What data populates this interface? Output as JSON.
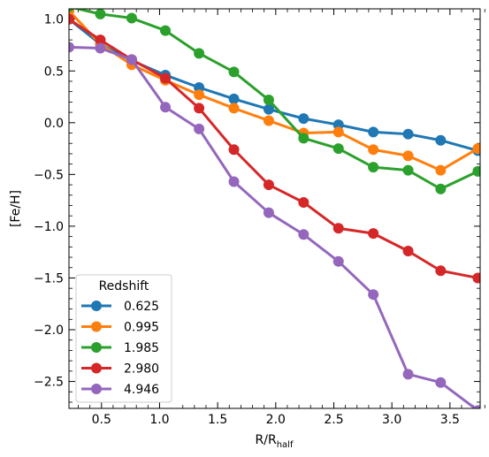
{
  "chart_data": {
    "type": "line",
    "xlabel": "R/R",
    "xlabel_sub": "half",
    "ylabel": "[Fe/H]",
    "xlim": [
      0.22,
      3.76
    ],
    "ylim": [
      -2.76,
      1.1
    ],
    "xticks": [
      0.5,
      1.0,
      1.5,
      2.0,
      2.5,
      3.0,
      3.5
    ],
    "xtick_labels": [
      "0.5",
      "1.0",
      "1.5",
      "2.0",
      "2.5",
      "3.0",
      "3.5"
    ],
    "yticks": [
      1.0,
      0.5,
      0.0,
      -0.5,
      -1.0,
      -1.5,
      -2.0,
      -2.5
    ],
    "ytick_labels": [
      "1.0",
      "0.5",
      "0.0",
      "−0.5",
      "−1.0",
      "−1.5",
      "−2.0",
      "−2.5"
    ],
    "grid": false,
    "legend": {
      "title": "Redshift",
      "position": "lower-left"
    },
    "x": [
      0.22,
      0.49,
      0.76,
      1.05,
      1.34,
      1.64,
      1.94,
      2.24,
      2.54,
      2.84,
      3.14,
      3.42,
      3.74
    ],
    "series": [
      {
        "name": "0.625",
        "color": "#1f77b4",
        "values": [
          1.0,
          0.76,
          0.6,
          0.46,
          0.34,
          0.23,
          0.13,
          0.04,
          -0.02,
          -0.09,
          -0.11,
          -0.17,
          -0.27
        ]
      },
      {
        "name": "0.995",
        "color": "#ff7f0e",
        "values": [
          1.08,
          0.76,
          0.56,
          0.41,
          0.27,
          0.14,
          0.02,
          -0.1,
          -0.09,
          -0.26,
          -0.32,
          -0.46,
          -0.25
        ]
      },
      {
        "name": "1.985",
        "color": "#2ca02c",
        "values": [
          1.12,
          1.05,
          1.01,
          0.89,
          0.67,
          0.49,
          0.22,
          -0.15,
          -0.25,
          -0.43,
          -0.46,
          -0.64,
          -0.47
        ]
      },
      {
        "name": "2.980",
        "color": "#d62728",
        "values": [
          1.0,
          0.8,
          0.61,
          0.43,
          0.14,
          -0.26,
          -0.6,
          -0.77,
          -1.02,
          -1.07,
          -1.24,
          -1.43,
          -1.5
        ]
      },
      {
        "name": "4.946",
        "color": "#9467bd",
        "values": [
          0.73,
          0.72,
          0.61,
          0.15,
          -0.06,
          -0.57,
          -0.87,
          -1.08,
          -1.34,
          -1.66,
          -2.43,
          -2.51,
          -2.78
        ]
      }
    ]
  }
}
